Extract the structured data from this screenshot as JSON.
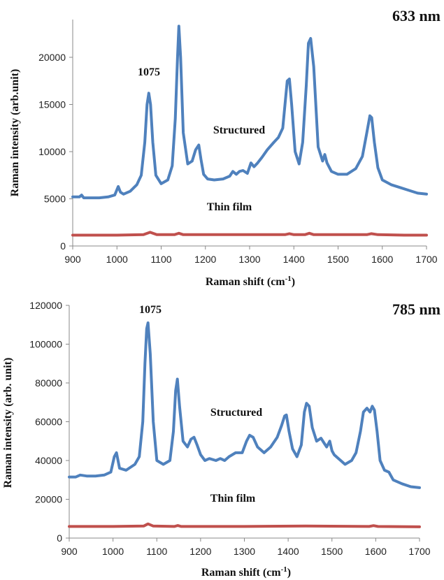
{
  "chart_data": [
    {
      "type": "line",
      "title": "633 nm",
      "xlabel": "Raman shift (cm",
      "xlabel_sup": "-1",
      "xlabel_end": ")",
      "ylabel": "Raman intensity (arb.unit)",
      "xlim": [
        900,
        1700
      ],
      "ylim": [
        0,
        24000
      ],
      "xticks": [
        "900",
        "1000",
        "1100",
        "1200",
        "1300",
        "1400",
        "1500",
        "1600",
        "1700"
      ],
      "yticks": [
        "0",
        "5000",
        "10000",
        "15000",
        "20000"
      ],
      "colors": {
        "structured": "#4F81BD",
        "thin_film": "#C0504D"
      },
      "annotations": {
        "peak": "1075",
        "structured": "Structured",
        "thin_film": "Thin film"
      },
      "series": [
        {
          "name": "Structured",
          "x": [
            900,
            915,
            920,
            925,
            940,
            960,
            980,
            995,
            1003,
            1008,
            1015,
            1030,
            1045,
            1055,
            1063,
            1068,
            1072,
            1076,
            1081,
            1088,
            1100,
            1115,
            1125,
            1132,
            1137,
            1140,
            1144,
            1150,
            1160,
            1170,
            1178,
            1185,
            1190,
            1196,
            1205,
            1220,
            1240,
            1255,
            1262,
            1270,
            1277,
            1285,
            1295,
            1303,
            1310,
            1318,
            1328,
            1340,
            1355,
            1365,
            1375,
            1380,
            1385,
            1390,
            1395,
            1403,
            1412,
            1420,
            1428,
            1433,
            1438,
            1445,
            1455,
            1465,
            1470,
            1475,
            1485,
            1500,
            1520,
            1540,
            1555,
            1565,
            1572,
            1576,
            1582,
            1590,
            1600,
            1620,
            1640,
            1660,
            1680,
            1700
          ],
          "y": [
            5200,
            5200,
            5400,
            5100,
            5100,
            5100,
            5200,
            5400,
            6300,
            5700,
            5500,
            5800,
            6500,
            7500,
            11000,
            15000,
            16200,
            15000,
            11000,
            7500,
            6600,
            7000,
            8500,
            13500,
            20000,
            23300,
            20000,
            12000,
            8700,
            9000,
            10200,
            10700,
            9200,
            7600,
            7100,
            7000,
            7100,
            7400,
            7900,
            7600,
            7900,
            8000,
            7700,
            8800,
            8400,
            8800,
            9400,
            10200,
            11000,
            11500,
            12500,
            15000,
            17500,
            17700,
            15000,
            10000,
            8700,
            11000,
            17000,
            21500,
            22000,
            19000,
            10500,
            9000,
            9700,
            8800,
            7900,
            7600,
            7600,
            8200,
            9500,
            12000,
            13800,
            13600,
            11000,
            8300,
            7000,
            6500,
            6200,
            5900,
            5600,
            5500
          ]
        },
        {
          "name": "Thin film",
          "x": [
            900,
            1000,
            1060,
            1075,
            1090,
            1130,
            1140,
            1150,
            1380,
            1390,
            1400,
            1425,
            1435,
            1445,
            1565,
            1575,
            1590,
            1650,
            1700
          ],
          "y": [
            1150,
            1150,
            1200,
            1450,
            1200,
            1200,
            1350,
            1200,
            1200,
            1300,
            1200,
            1200,
            1350,
            1200,
            1200,
            1300,
            1200,
            1150,
            1150
          ]
        }
      ]
    },
    {
      "type": "line",
      "title": "785 nm",
      "xlabel": "Raman shift (cm",
      "xlabel_sup": "-1",
      "xlabel_end": ")",
      "ylabel": "Raman intensity (arb. unit)",
      "xlim": [
        900,
        1700
      ],
      "ylim": [
        0,
        120000
      ],
      "xticks": [
        "900",
        "1000",
        "1100",
        "1200",
        "1300",
        "1400",
        "1500",
        "1600",
        "1700"
      ],
      "yticks": [
        "0",
        "20000",
        "40000",
        "60000",
        "80000",
        "100000",
        "120000"
      ],
      "colors": {
        "structured": "#4F81BD",
        "thin_film": "#C0504D"
      },
      "annotations": {
        "peak": "1075",
        "structured": "Structured",
        "thin_film": "Thin film"
      },
      "series": [
        {
          "name": "Structured",
          "x": [
            900,
            915,
            925,
            940,
            960,
            980,
            995,
            1003,
            1008,
            1015,
            1030,
            1050,
            1060,
            1068,
            1073,
            1077,
            1080,
            1085,
            1092,
            1100,
            1115,
            1130,
            1138,
            1143,
            1147,
            1152,
            1160,
            1170,
            1178,
            1185,
            1192,
            1200,
            1210,
            1220,
            1235,
            1245,
            1255,
            1265,
            1280,
            1295,
            1305,
            1312,
            1320,
            1330,
            1345,
            1360,
            1375,
            1385,
            1392,
            1396,
            1402,
            1410,
            1420,
            1430,
            1437,
            1442,
            1448,
            1455,
            1465,
            1475,
            1482,
            1488,
            1495,
            1500,
            1505,
            1515,
            1530,
            1545,
            1555,
            1565,
            1572,
            1580,
            1587,
            1592,
            1597,
            1603,
            1610,
            1620,
            1630,
            1640,
            1660,
            1680,
            1700
          ],
          "y": [
            31500,
            31500,
            32500,
            32000,
            32000,
            32500,
            34000,
            42000,
            44000,
            36000,
            35000,
            38000,
            42000,
            60000,
            90000,
            108000,
            111000,
            95000,
            60000,
            40000,
            38000,
            40000,
            55000,
            76000,
            82000,
            68000,
            50000,
            47000,
            51000,
            52000,
            48000,
            43000,
            40000,
            41000,
            40000,
            41000,
            40000,
            42000,
            44000,
            44000,
            50000,
            53000,
            52000,
            47000,
            44000,
            47000,
            52000,
            58000,
            63000,
            63500,
            55000,
            46000,
            42000,
            48000,
            65000,
            69500,
            68000,
            57000,
            50000,
            51500,
            49000,
            47000,
            50000,
            45000,
            43000,
            41000,
            38000,
            40000,
            44000,
            55000,
            65000,
            67000,
            65000,
            68000,
            66000,
            55000,
            40000,
            35000,
            34000,
            30000,
            28000,
            26500,
            26000
          ]
        },
        {
          "name": "Thin film",
          "x": [
            900,
            1000,
            1070,
            1080,
            1092,
            1140,
            1148,
            1156,
            1300,
            1440,
            1585,
            1595,
            1605,
            1700
          ],
          "y": [
            6000,
            6000,
            6200,
            7300,
            6200,
            6000,
            6500,
            6000,
            6000,
            6200,
            6000,
            6400,
            6000,
            5800
          ]
        }
      ]
    }
  ]
}
